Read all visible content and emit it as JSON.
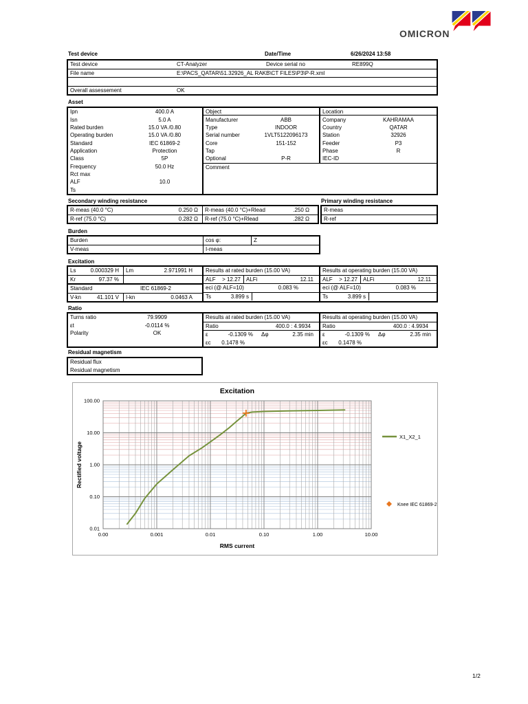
{
  "logo": {
    "text": "OMICRON",
    "colors": {
      "blue": "#2b3a8f",
      "yellow": "#ffd500",
      "red": "#e2001a"
    }
  },
  "header": {
    "title": "Test device",
    "datetime_label": "Date/Time",
    "datetime_value": "6/26/2024 13:58"
  },
  "test_device": {
    "device_label": "Test device",
    "device_value": "CT-Analyzer",
    "serial_label": "Device serial no",
    "serial_value": "RE899Q",
    "file_label": "File name",
    "file_value": "E:\\PACS_QATAR\\51.32926_AL RAKB\\CT FILES\\P3\\P-R.xml",
    "assessment_label": "Overall assessement",
    "assessment_value": "OK"
  },
  "asset": {
    "title": "Asset",
    "left": [
      {
        "l": "Ipn",
        "v": "400.0 A"
      },
      {
        "l": "Isn",
        "v": "5.0 A"
      },
      {
        "l": "Rated burden",
        "v": "15.0 VA  /0.80"
      },
      {
        "l": "Operating burden",
        "v": "15.0 VA  /0.80"
      },
      {
        "l": "Standard",
        "v": "IEC 61869-2"
      },
      {
        "l": "Application",
        "v": "Protection"
      },
      {
        "l": "Class",
        "v": "5P"
      },
      {
        "l": "Frequency",
        "v": "50.0 Hz"
      },
      {
        "l": "Rct max",
        "v": ""
      },
      {
        "l": "ALF",
        "v": "10.0"
      },
      {
        "l": "Ts",
        "v": ""
      }
    ],
    "object_header": "Object",
    "object_rows": [
      {
        "l": "Manufacturer",
        "v": "ABB"
      },
      {
        "l": "Type",
        "v": "INDOOR"
      },
      {
        "l": "Serial number",
        "v": "1VLT5122096173"
      },
      {
        "l": "Core",
        "v": "151-152"
      },
      {
        "l": "Tap",
        "v": ""
      },
      {
        "l": "Optional",
        "v": "P-R"
      }
    ],
    "location_header": "Location",
    "location_rows": [
      {
        "l": "Company",
        "v": "KAHRAMAA"
      },
      {
        "l": "Country",
        "v": "QATAR"
      },
      {
        "l": "Station",
        "v": "32926"
      },
      {
        "l": "Feeder",
        "v": "P3"
      },
      {
        "l": "Phase",
        "v": "R"
      },
      {
        "l": "IEC-ID",
        "v": ""
      }
    ],
    "comment_label": "Comment"
  },
  "secondary_winding": {
    "title": "Secondary winding resistance",
    "rows": [
      {
        "l": "R-meas (40.0 °C)",
        "v": "0.250 Ω",
        "l2": "R-meas (40.0 °C)+Rlead",
        "v2": "0.250 Ω"
      },
      {
        "l": "R-ref (75.0 °C)",
        "v": "0.282 Ω",
        "l2": "R-ref (75.0 °C)+Rlead",
        "v2": "0.282 Ω"
      }
    ]
  },
  "primary_winding": {
    "title": "Primary winding resistance",
    "rows": [
      {
        "l": "R-meas"
      },
      {
        "l": "R-ref"
      }
    ]
  },
  "burden": {
    "title": "Burden",
    "rows": [
      {
        "l": "Burden",
        "l2": "cos φ:",
        "v2": "Z"
      },
      {
        "l": "V-meas",
        "l2": "I-meas"
      }
    ]
  },
  "excitation": {
    "title": "Excitation",
    "left": {
      "ls_label": "Ls",
      "ls_value": "0.000329 H",
      "lm_label": "Lm",
      "lm_value": "2.971991 H",
      "kr_label": "Kr",
      "kr_value": "97.37 %",
      "standard_label": "Standard",
      "standard_value": "IEC 61869-2",
      "vkn_label": "V-kn",
      "vkn_value": "41.101 V",
      "ikn_label": "I-kn",
      "ikn_value": "0.0463 A"
    },
    "rated": {
      "header": "Results at rated burden (15.00 VA)",
      "alf_label": "ALF",
      "alf_value": "> 12.27",
      "alfi_label": "ALFi",
      "alfi_value": "12.11",
      "eci_label": "eci (@ ALF=10)",
      "eci_value": "0.083 %",
      "ts_label": "Ts",
      "ts_value": "3.899 s"
    },
    "operating": {
      "header": "Results at operating burden (15.00 VA)",
      "alf_label": "ALF",
      "alf_value": "> 12.27",
      "alfi_label": "ALFi",
      "alfi_value": "12.11",
      "eci_label": "eci (@ ALF=10)",
      "eci_value": "0.083 %",
      "ts_label": "Ts",
      "ts_value": "3.899 s"
    }
  },
  "ratio": {
    "title": "Ratio",
    "left_rows": [
      {
        "l": "Turns ratio",
        "v": "79.9909"
      },
      {
        "l": "εt",
        "v": "-0.0114 %"
      },
      {
        "l": "Polarity",
        "v": "OK"
      }
    ],
    "rated": {
      "header": "Results at rated burden (15.00 VA)",
      "ratio_label": "Ratio",
      "ratio_value": "400.0 : 4.9934",
      "e_label": "ε",
      "e_value": "-0.1309 %",
      "dphi_label": "Δφ",
      "dphi_value": "2.35 min",
      "ec_label": "εc",
      "ec_value": "0.1478 %"
    },
    "operating": {
      "header": "Results at operating burden (15.00 VA)",
      "ratio_label": "Ratio",
      "ratio_value": "400.0 : 4.9934",
      "e_label": "ε",
      "e_value": "-0.1309 %",
      "dphi_label": "Δφ",
      "dphi_value": "2.35 min",
      "ec_label": "εc",
      "ec_value": "0.1478 %"
    }
  },
  "residual": {
    "title": "Residual magnetism",
    "rows": [
      {
        "l": "Residual flux"
      },
      {
        "l": "Residual magnetism"
      }
    ]
  },
  "chart_data": {
    "type": "line",
    "title": "Excitation",
    "xlabel": "RMS current",
    "ylabel": "Rectified voltage",
    "x_scale": "log",
    "y_scale": "log",
    "xlim": [
      0.0001,
      10
    ],
    "ylim": [
      0.01,
      100
    ],
    "x_tick_labels": [
      "0.00",
      "0.001",
      "0.01",
      "0.10",
      "1.00",
      "10.00"
    ],
    "y_tick_labels": [
      "100.00",
      "10.00",
      "1.00",
      "0.10",
      "0.01"
    ],
    "legend_position": "right",
    "grid": true,
    "series": [
      {
        "name": "X1_X2_1",
        "color": "#76923c",
        "x": [
          0.00028,
          0.0004,
          0.0006,
          0.001,
          0.002,
          0.004,
          0.007,
          0.01,
          0.015,
          0.022,
          0.03,
          0.04,
          0.0463,
          0.06,
          0.1,
          0.3,
          1.0,
          3.2
        ],
        "y": [
          0.014,
          0.03,
          0.09,
          0.25,
          0.7,
          1.9,
          3.4,
          5.2,
          8.5,
          14,
          22,
          33,
          41.1,
          44.5,
          46.5,
          48.5,
          50,
          52
        ]
      }
    ],
    "knee": {
      "name": "Knee IEC 61869-2",
      "x": 0.0463,
      "y": 41.101,
      "color": "#e8761e"
    },
    "grid_colors": {
      "h_upper": "#dfa0a0",
      "h_lower": "#a8c0dc",
      "major": "#808080",
      "v_minor": "#a8a8a8"
    }
  },
  "page": {
    "number": "1/2"
  }
}
